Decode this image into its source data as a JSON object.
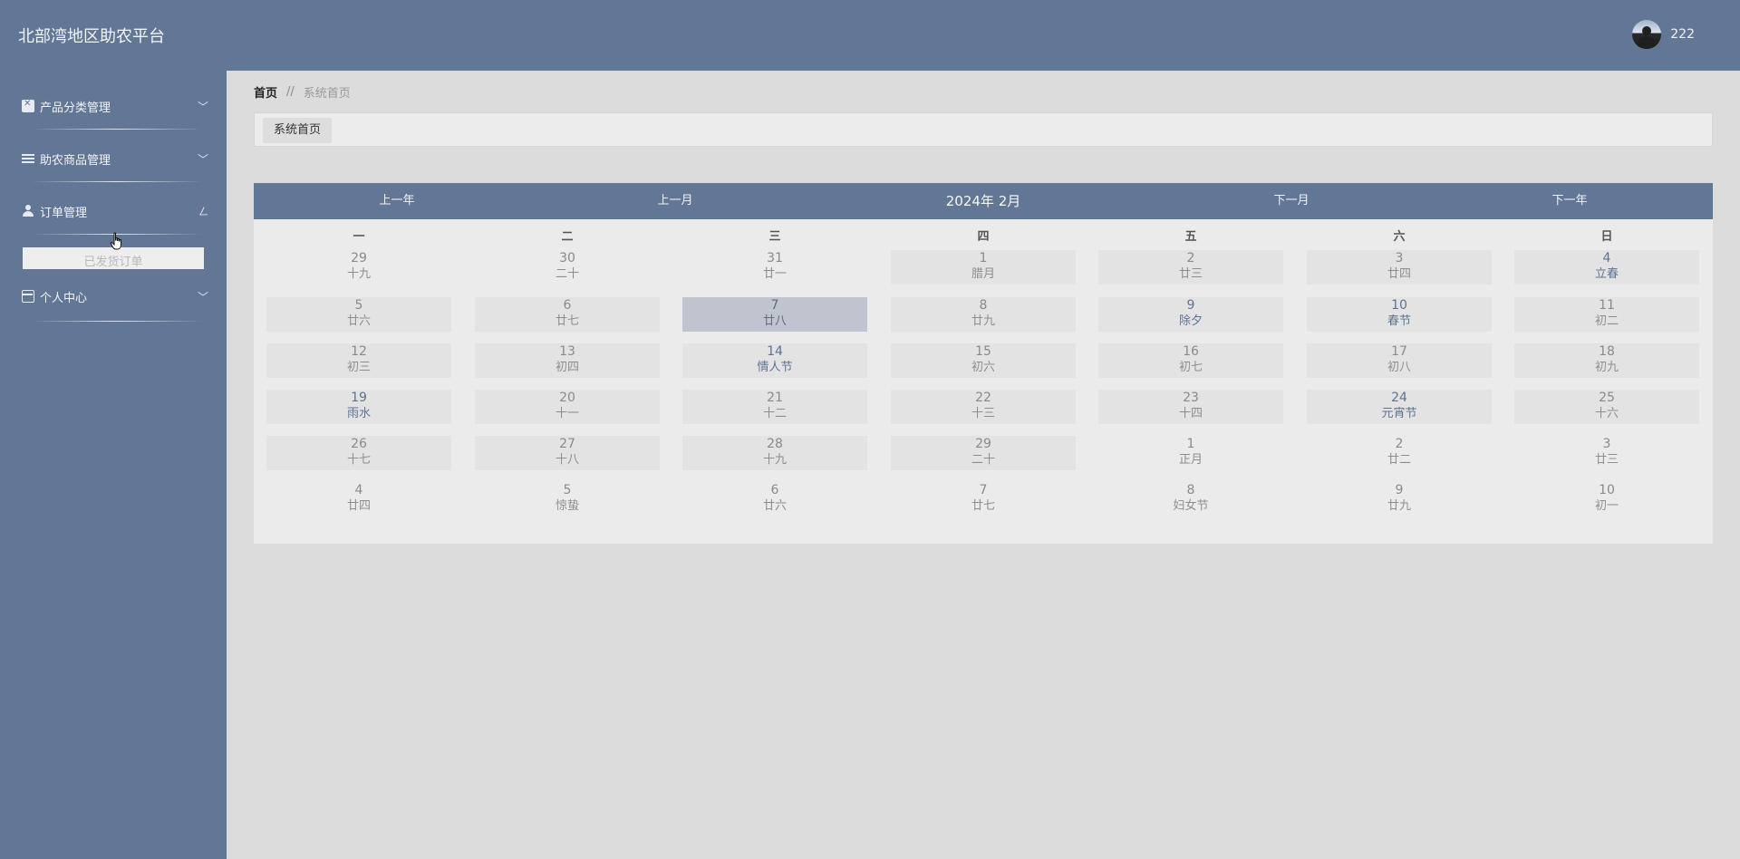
{
  "header": {
    "app_title": "北部湾地区助农平台",
    "user_name": "222"
  },
  "sidebar": {
    "items": [
      {
        "label": "产品分类管理",
        "icon": "clipboard-icon"
      },
      {
        "label": "助农商品管理",
        "icon": "list-icon"
      },
      {
        "label": "订单管理",
        "icon": "user-icon"
      },
      {
        "label": "个人中心",
        "icon": "card-icon"
      }
    ],
    "sub_item": "已发货订单"
  },
  "breadcrumb": {
    "home": "首页",
    "separator": "//",
    "current": "系统首页"
  },
  "tabs": [
    "系统首页"
  ],
  "calendar": {
    "prev_year": "上一年",
    "prev_month": "上一月",
    "title": "2024年 2月",
    "next_month": "下一月",
    "next_year": "下一年",
    "weekdays": [
      "一",
      "二",
      "三",
      "四",
      "五",
      "六",
      "日"
    ],
    "selected_day": "7",
    "weeks": [
      [
        {
          "day": "29",
          "lunar": "十九"
        },
        {
          "day": "30",
          "lunar": "二十"
        },
        {
          "day": "31",
          "lunar": "廿一"
        },
        {
          "day": "1",
          "lunar": "腊月"
        },
        {
          "day": "2",
          "lunar": "廿三"
        },
        {
          "day": "3",
          "lunar": "廿四"
        },
        {
          "day": "4",
          "lunar": "立春",
          "festival": true
        }
      ],
      [
        {
          "day": "5",
          "lunar": "廿六"
        },
        {
          "day": "6",
          "lunar": "廿七"
        },
        {
          "day": "7",
          "lunar": "廿八",
          "selected": true
        },
        {
          "day": "8",
          "lunar": "廿九"
        },
        {
          "day": "9",
          "lunar": "除夕",
          "festival": true
        },
        {
          "day": "10",
          "lunar": "春节",
          "festival": true
        },
        {
          "day": "11",
          "lunar": "初二"
        }
      ],
      [
        {
          "day": "12",
          "lunar": "初三"
        },
        {
          "day": "13",
          "lunar": "初四"
        },
        {
          "day": "14",
          "lunar": "情人节",
          "festival": true
        },
        {
          "day": "15",
          "lunar": "初六"
        },
        {
          "day": "16",
          "lunar": "初七"
        },
        {
          "day": "17",
          "lunar": "初八"
        },
        {
          "day": "18",
          "lunar": "初九"
        }
      ],
      [
        {
          "day": "19",
          "lunar": "雨水",
          "festival": true
        },
        {
          "day": "20",
          "lunar": "十一"
        },
        {
          "day": "21",
          "lunar": "十二"
        },
        {
          "day": "22",
          "lunar": "十三"
        },
        {
          "day": "23",
          "lunar": "十四"
        },
        {
          "day": "24",
          "lunar": "元宵节",
          "festival": true
        },
        {
          "day": "25",
          "lunar": "十六"
        }
      ],
      [
        {
          "day": "26",
          "lunar": "十七"
        },
        {
          "day": "27",
          "lunar": "十八"
        },
        {
          "day": "28",
          "lunar": "十九"
        },
        {
          "day": "29",
          "lunar": "二十"
        },
        {
          "day": "1",
          "lunar": "正月"
        },
        {
          "day": "2",
          "lunar": "廿二"
        },
        {
          "day": "3",
          "lunar": "廿三"
        }
      ],
      [
        {
          "day": "4",
          "lunar": "廿四"
        },
        {
          "day": "5",
          "lunar": "惊蛰"
        },
        {
          "day": "6",
          "lunar": "廿六"
        },
        {
          "day": "7",
          "lunar": "廿七"
        },
        {
          "day": "8",
          "lunar": "妇女节"
        },
        {
          "day": "9",
          "lunar": "廿九"
        },
        {
          "day": "10",
          "lunar": "初一"
        }
      ]
    ]
  },
  "colors": {
    "primary": "#627695",
    "festival": "#5d7293",
    "selected": "#c0c4ce"
  }
}
